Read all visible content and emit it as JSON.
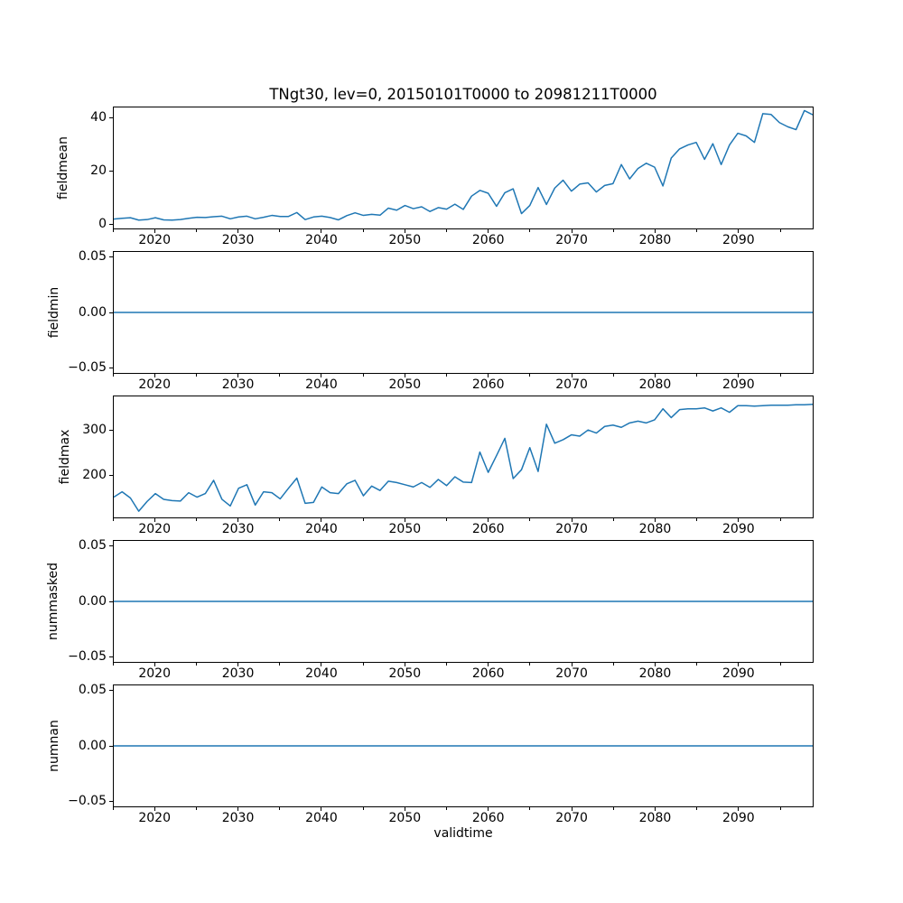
{
  "figure": {
    "background": "#ffffff",
    "line_color": "#1f77b4",
    "frame_color": "#000000",
    "grid": false,
    "legend": "none"
  },
  "chart_data": {
    "type": "line",
    "title": "TNgt30, lev=0, 20150101T0000 to 20981211T0000",
    "xlabel": "validtime",
    "x_start_year": 2015,
    "x_step_years": 1,
    "xlim": [
      2015,
      2099
    ],
    "xticks": [
      2020,
      2030,
      2040,
      2050,
      2060,
      2070,
      2080,
      2090
    ],
    "xtick_labels": [
      "2020",
      "2030",
      "2040",
      "2050",
      "2060",
      "2070",
      "2080",
      "2090"
    ],
    "xtick_minor_interval_years": 5,
    "subplots": [
      {
        "ylabel": "fieldmean",
        "yticks": [
          0,
          20,
          40
        ],
        "ytick_labels": [
          "0",
          "20",
          "40"
        ],
        "ylim": [
          -2,
          44.4
        ],
        "values": [
          1.6,
          1.9,
          2.1,
          1.2,
          1.4,
          2.1,
          1.3,
          1.2,
          1.4,
          1.9,
          2.3,
          2.2,
          2.5,
          2.7,
          1.7,
          2.4,
          2.7,
          1.7,
          2.3,
          3.0,
          2.6,
          2.6,
          4.1,
          1.4,
          2.4,
          2.7,
          2.2,
          1.3,
          2.9,
          4.0,
          3.0,
          3.4,
          3.1,
          5.8,
          5.0,
          6.8,
          5.6,
          6.3,
          4.5,
          6.0,
          5.4,
          7.3,
          5.3,
          10.4,
          12.6,
          11.5,
          6.5,
          11.7,
          13.2,
          3.7,
          6.8,
          13.7,
          7.2,
          13.5,
          16.5,
          12.3,
          15.0,
          15.5,
          12.0,
          14.5,
          15.2,
          22.5,
          17.0,
          21.0,
          23.0,
          21.5,
          14.3,
          25.0,
          28.5,
          30.0,
          31.0,
          24.5,
          30.5,
          22.5,
          30.0,
          34.5,
          33.5,
          31.0,
          42.0,
          41.7,
          38.6,
          37.0,
          35.9,
          43.2,
          41.6
        ]
      },
      {
        "ylabel": "fieldmin",
        "yticks": [
          -0.05,
          0,
          0.05
        ],
        "ytick_labels": [
          "−0.05",
          "0.00",
          "0.05"
        ],
        "ylim": [
          -0.055,
          0.055
        ],
        "constant": 0
      },
      {
        "ylabel": "fieldmax",
        "yticks": [
          200,
          300
        ],
        "ytick_labels": [
          "200",
          "300"
        ],
        "ylim": [
          104,
          378
        ],
        "values": [
          150,
          162,
          148,
          118,
          140,
          158,
          145,
          142,
          141,
          160,
          150,
          158,
          188,
          145,
          130,
          170,
          178,
          132,
          162,
          160,
          146,
          170,
          193,
          136,
          138,
          173,
          160,
          158,
          180,
          188,
          153,
          175,
          165,
          186,
          183,
          178,
          173,
          183,
          172,
          190,
          176,
          196,
          184,
          183,
          252,
          206,
          244,
          283,
          192,
          212,
          262,
          208,
          315,
          272,
          280,
          291,
          288,
          302,
          295,
          310,
          313,
          308,
          318,
          322,
          318,
          325,
          350,
          330,
          348,
          350,
          350,
          352,
          345,
          352,
          342,
          357,
          357,
          356,
          357,
          358,
          358,
          358,
          359,
          359,
          360
        ]
      },
      {
        "ylabel": "nummasked",
        "yticks": [
          -0.05,
          0,
          0.05
        ],
        "ytick_labels": [
          "−0.05",
          "0.00",
          "0.05"
        ],
        "ylim": [
          -0.055,
          0.055
        ],
        "constant": 0
      },
      {
        "ylabel": "numnan",
        "yticks": [
          -0.05,
          0,
          0.05
        ],
        "ytick_labels": [
          "−0.05",
          "0.00",
          "0.05"
        ],
        "ylim": [
          -0.055,
          0.055
        ],
        "constant": 0
      }
    ]
  }
}
